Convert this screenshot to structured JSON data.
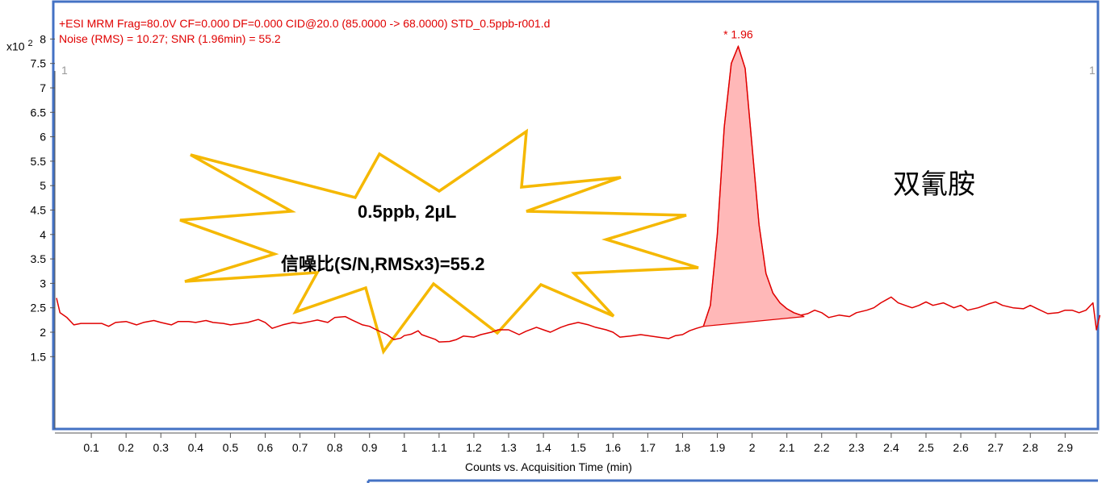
{
  "header": {
    "line1": "+ESI MRM Frag=80.0V CF=0.000 DF=0.000 CID@20.0 (85.0000 -> 68.0000) STD_0.5ppb-r001.d",
    "line2": "Noise (RMS) = 10.27; SNR (1.96min) = 55.2"
  },
  "y_exponent": {
    "base": "x10",
    "power": "2"
  },
  "corner_labels": {
    "left": "1",
    "right": "1"
  },
  "peak_label": "* 1.96",
  "compound_name": "双氰胺",
  "burst": {
    "line1": "0.5ppb, 2μL",
    "line2": "信噪比(S/N,RMSx3)=55.2"
  },
  "colors": {
    "trace": "#e00000",
    "peak_fill": "#ffb8b8",
    "burst_stroke": "#f5b800",
    "frame": "#4472c4"
  },
  "chart_data": {
    "type": "line",
    "title": "+ESI MRM Frag=80.0V CF=0.000 DF=0.000 CID@20.0 (85.0000 -> 68.0000) STD_0.5ppb-r001.d",
    "xlabel": "Counts vs. Acquisition Time (min)",
    "ylabel": "x10^2",
    "xlim": [
      0,
      3.0
    ],
    "ylim": [
      1.0,
      8.6
    ],
    "x_ticks": [
      "0.1",
      "0.2",
      "0.3",
      "0.4",
      "0.5",
      "0.6",
      "0.7",
      "0.8",
      "0.9",
      "1",
      "1.1",
      "1.2",
      "1.3",
      "1.4",
      "1.5",
      "1.6",
      "1.7",
      "1.8",
      "1.9",
      "2",
      "2.1",
      "2.2",
      "2.3",
      "2.4",
      "2.5",
      "2.6",
      "2.7",
      "2.8",
      "2.9"
    ],
    "x_tick_values": [
      0.1,
      0.2,
      0.3,
      0.4,
      0.5,
      0.6,
      0.7,
      0.8,
      0.9,
      1.0,
      1.1,
      1.2,
      1.3,
      1.4,
      1.5,
      1.6,
      1.7,
      1.8,
      1.9,
      2.0,
      2.1,
      2.2,
      2.3,
      2.4,
      2.5,
      2.6,
      2.7,
      2.8,
      2.9
    ],
    "y_ticks": [
      "1.5",
      "2",
      "2.5",
      "3",
      "3.5",
      "4",
      "4.5",
      "5",
      "5.5",
      "6",
      "6.5",
      "7",
      "7.5",
      "8"
    ],
    "y_tick_values": [
      1.5,
      2,
      2.5,
      3,
      3.5,
      4,
      4.5,
      5,
      5.5,
      6,
      6.5,
      7,
      7.5,
      8
    ],
    "series": [
      {
        "points": [
          [
            0.0,
            2.7
          ],
          [
            0.01,
            2.4
          ],
          [
            0.02,
            2.35
          ],
          [
            0.03,
            2.3
          ],
          [
            0.05,
            2.15
          ],
          [
            0.07,
            2.18
          ],
          [
            0.1,
            2.18
          ],
          [
            0.13,
            2.18
          ],
          [
            0.15,
            2.12
          ],
          [
            0.17,
            2.2
          ],
          [
            0.2,
            2.22
          ],
          [
            0.23,
            2.15
          ],
          [
            0.25,
            2.2
          ],
          [
            0.28,
            2.24
          ],
          [
            0.3,
            2.2
          ],
          [
            0.33,
            2.15
          ],
          [
            0.35,
            2.22
          ],
          [
            0.38,
            2.22
          ],
          [
            0.4,
            2.2
          ],
          [
            0.43,
            2.24
          ],
          [
            0.45,
            2.2
          ],
          [
            0.48,
            2.18
          ],
          [
            0.5,
            2.15
          ],
          [
            0.53,
            2.18
          ],
          [
            0.55,
            2.2
          ],
          [
            0.58,
            2.26
          ],
          [
            0.6,
            2.2
          ],
          [
            0.62,
            2.08
          ],
          [
            0.65,
            2.15
          ],
          [
            0.68,
            2.2
          ],
          [
            0.7,
            2.18
          ],
          [
            0.73,
            2.22
          ],
          [
            0.75,
            2.25
          ],
          [
            0.78,
            2.2
          ],
          [
            0.8,
            2.3
          ],
          [
            0.83,
            2.32
          ],
          [
            0.85,
            2.25
          ],
          [
            0.88,
            2.15
          ],
          [
            0.9,
            2.12
          ],
          [
            0.92,
            2.05
          ],
          [
            0.95,
            1.95
          ],
          [
            0.97,
            1.85
          ],
          [
            0.99,
            1.88
          ],
          [
            1.0,
            1.93
          ],
          [
            1.02,
            1.96
          ],
          [
            1.04,
            2.03
          ],
          [
            1.05,
            1.95
          ],
          [
            1.07,
            1.9
          ],
          [
            1.09,
            1.85
          ],
          [
            1.1,
            1.8
          ],
          [
            1.13,
            1.81
          ],
          [
            1.15,
            1.85
          ],
          [
            1.17,
            1.92
          ],
          [
            1.2,
            1.9
          ],
          [
            1.22,
            1.95
          ],
          [
            1.25,
            2.0
          ],
          [
            1.27,
            2.05
          ],
          [
            1.3,
            2.05
          ],
          [
            1.33,
            1.95
          ],
          [
            1.35,
            2.02
          ],
          [
            1.38,
            2.1
          ],
          [
            1.4,
            2.05
          ],
          [
            1.42,
            2.0
          ],
          [
            1.45,
            2.1
          ],
          [
            1.47,
            2.15
          ],
          [
            1.5,
            2.2
          ],
          [
            1.53,
            2.15
          ],
          [
            1.55,
            2.1
          ],
          [
            1.58,
            2.05
          ],
          [
            1.6,
            2.0
          ],
          [
            1.62,
            1.9
          ],
          [
            1.65,
            1.92
          ],
          [
            1.68,
            1.95
          ],
          [
            1.7,
            1.93
          ],
          [
            1.73,
            1.9
          ],
          [
            1.76,
            1.87
          ],
          [
            1.78,
            1.93
          ],
          [
            1.8,
            1.95
          ],
          [
            1.82,
            2.03
          ],
          [
            1.84,
            2.08
          ],
          [
            1.86,
            2.12
          ],
          [
            1.88,
            2.55
          ],
          [
            1.9,
            4.0
          ],
          [
            1.92,
            6.2
          ],
          [
            1.94,
            7.5
          ],
          [
            1.96,
            7.85
          ],
          [
            1.98,
            7.4
          ],
          [
            2.0,
            5.8
          ],
          [
            2.02,
            4.2
          ],
          [
            2.04,
            3.2
          ],
          [
            2.06,
            2.8
          ],
          [
            2.08,
            2.6
          ],
          [
            2.1,
            2.48
          ],
          [
            2.12,
            2.4
          ],
          [
            2.14,
            2.35
          ],
          [
            2.16,
            2.38
          ],
          [
            2.18,
            2.45
          ],
          [
            2.2,
            2.4
          ],
          [
            2.22,
            2.3
          ],
          [
            2.25,
            2.35
          ],
          [
            2.28,
            2.32
          ],
          [
            2.3,
            2.4
          ],
          [
            2.33,
            2.45
          ],
          [
            2.35,
            2.5
          ],
          [
            2.37,
            2.6
          ],
          [
            2.39,
            2.68
          ],
          [
            2.4,
            2.72
          ],
          [
            2.42,
            2.6
          ],
          [
            2.44,
            2.55
          ],
          [
            2.46,
            2.5
          ],
          [
            2.48,
            2.55
          ],
          [
            2.5,
            2.62
          ],
          [
            2.52,
            2.55
          ],
          [
            2.55,
            2.6
          ],
          [
            2.58,
            2.5
          ],
          [
            2.6,
            2.55
          ],
          [
            2.62,
            2.45
          ],
          [
            2.65,
            2.5
          ],
          [
            2.68,
            2.58
          ],
          [
            2.7,
            2.62
          ],
          [
            2.72,
            2.55
          ],
          [
            2.75,
            2.5
          ],
          [
            2.78,
            2.48
          ],
          [
            2.8,
            2.55
          ],
          [
            2.82,
            2.48
          ],
          [
            2.85,
            2.38
          ],
          [
            2.88,
            2.4
          ],
          [
            2.9,
            2.45
          ],
          [
            2.92,
            2.45
          ],
          [
            2.94,
            2.4
          ],
          [
            2.96,
            2.45
          ],
          [
            2.98,
            2.6
          ],
          [
            2.99,
            2.05
          ],
          [
            3.0,
            2.35
          ]
        ]
      }
    ],
    "peak": {
      "apex_x": 1.96,
      "apex_y": 7.85,
      "start": [
        1.86,
        2.12
      ],
      "end": [
        2.15,
        2.32
      ]
    },
    "grid": false,
    "legend": "none"
  }
}
